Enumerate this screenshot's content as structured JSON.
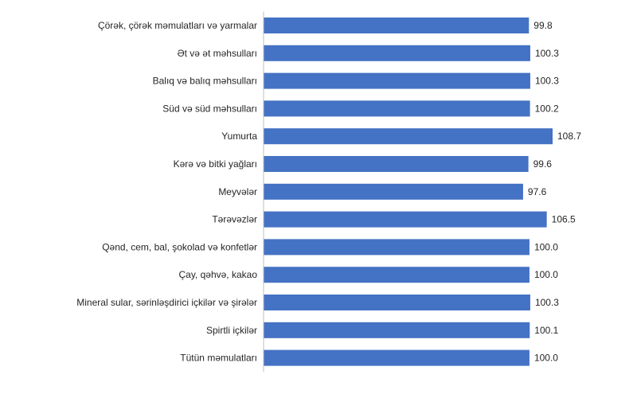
{
  "chart_data": {
    "type": "bar",
    "orientation": "horizontal",
    "title": "",
    "xlabel": "",
    "ylabel": "",
    "grid": false,
    "legend": "none",
    "bar_color": "#4472C4",
    "xlim": [
      0,
      110
    ],
    "categories": [
      "Çörək, çörək məmulatları  və yarmalar",
      "Ət və ət məhsulları",
      "Balıq və balıq məhsulları",
      "Süd və süd məhsulları",
      "Yumurta",
      "Kərə və bitki yağları",
      "Meyvələr",
      "Tərəvəzlər",
      "Qənd, cem, bal, şokolad və konfetlər",
      "Çay, qəhvə, kakao",
      "Mineral sular, sərinləşdirici içkilər və şirələr",
      "Spirtli içkilər",
      "Tütün məmulatları"
    ],
    "values": [
      99.8,
      100.3,
      100.3,
      100.2,
      108.7,
      99.6,
      97.6,
      106.5,
      100.0,
      100.0,
      100.3,
      100.1,
      100.0
    ],
    "value_labels": [
      "99.8",
      "100.3",
      "100.3",
      "100.2",
      "108.7",
      "99.6",
      "97.6",
      "106.5",
      "100.0",
      "100.0",
      "100.3",
      "100.1",
      "100.0"
    ]
  }
}
